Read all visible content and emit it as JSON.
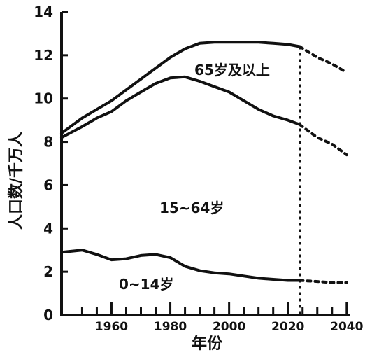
{
  "chart_data": {
    "type": "line",
    "xlabel": "年份",
    "ylabel": "人口数/千万人",
    "xlim": [
      1943,
      2041
    ],
    "ylim": [
      0,
      14
    ],
    "xticks": [
      1960,
      1980,
      2000,
      2020,
      2040
    ],
    "yticks": [
      0,
      2,
      4,
      6,
      8,
      10,
      12,
      14
    ],
    "minor_xticks": [
      1950,
      1955,
      1960,
      1965,
      1970,
      1975,
      1980,
      1985,
      1990,
      1995,
      2000,
      2005,
      2010,
      2015,
      2020,
      2025,
      2030,
      2035,
      2040
    ],
    "projection_start": 2024,
    "region_labels": [
      "65岁及以上",
      "15~64岁",
      "0~14岁"
    ],
    "series": [
      {
        "key": "total",
        "x": [
          1943,
          1950,
          1955,
          1960,
          1965,
          1970,
          1975,
          1980,
          1985,
          1990,
          1995,
          2000,
          2005,
          2010,
          2015,
          2020,
          2024,
          2030,
          2035,
          2040
        ],
        "values": [
          8.4,
          9.1,
          9.5,
          9.9,
          10.4,
          10.9,
          11.4,
          11.9,
          12.3,
          12.55,
          12.6,
          12.6,
          12.6,
          12.6,
          12.55,
          12.5,
          12.4,
          11.9,
          11.6,
          11.2
        ]
      },
      {
        "key": "upper_15_64",
        "x": [
          1943,
          1950,
          1955,
          1960,
          1965,
          1970,
          1975,
          1980,
          1985,
          1990,
          1995,
          2000,
          2005,
          2010,
          2015,
          2020,
          2024,
          2030,
          2035,
          2040
        ],
        "values": [
          8.2,
          8.7,
          9.1,
          9.4,
          9.9,
          10.3,
          10.7,
          10.95,
          11.0,
          10.8,
          10.55,
          10.3,
          9.9,
          9.5,
          9.2,
          9.0,
          8.8,
          8.2,
          7.9,
          7.4
        ]
      },
      {
        "key": "lower_0_14",
        "x": [
          1943,
          1950,
          1955,
          1960,
          1965,
          1970,
          1975,
          1980,
          1985,
          1990,
          1995,
          2000,
          2005,
          2010,
          2015,
          2020,
          2024,
          2030,
          2035,
          2040
        ],
        "values": [
          2.9,
          3.0,
          2.8,
          2.55,
          2.6,
          2.75,
          2.8,
          2.65,
          2.25,
          2.05,
          1.95,
          1.9,
          1.8,
          1.7,
          1.65,
          1.6,
          1.6,
          1.55,
          1.5,
          1.5
        ]
      }
    ]
  }
}
